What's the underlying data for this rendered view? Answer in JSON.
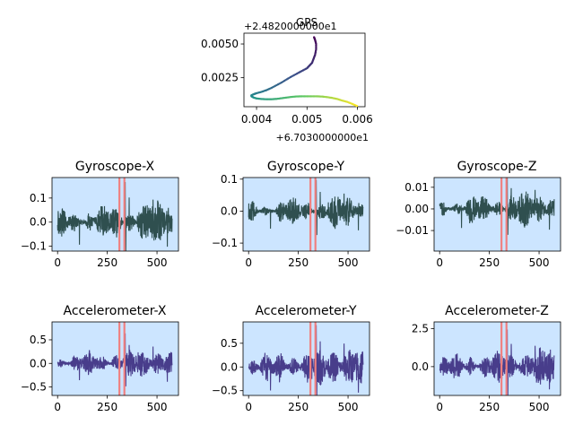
{
  "chart_data": [
    {
      "type": "scatter",
      "title": "GPS",
      "x_offset_label": "+6.7030000000e1",
      "y_offset_label": "+2.4820000000e1",
      "xlim": [
        0.00375,
        0.00615
      ],
      "ylim": [
        0.00035,
        0.0058
      ],
      "xticks": [
        0.004,
        0.005,
        0.006
      ],
      "xtick_labels": [
        "0.004",
        "0.005",
        "0.006"
      ],
      "yticks": [
        0.0025,
        0.005
      ],
      "ytick_labels": [
        "0.0025",
        "0.0050"
      ],
      "colormap": [
        "#440154",
        "#3b528b",
        "#21918c",
        "#5ec962",
        "#fde725"
      ],
      "x": [
        0.00599,
        0.0059,
        0.0058,
        0.0057,
        0.0056,
        0.0055,
        0.0054,
        0.0053,
        0.0052,
        0.0051,
        0.005,
        0.0049,
        0.0048,
        0.0047,
        0.0046,
        0.0045,
        0.0044,
        0.0043,
        0.0042,
        0.0041,
        0.004,
        0.00394,
        0.0039,
        0.0039,
        0.00395,
        0.004,
        0.0041,
        0.0042,
        0.0043,
        0.0044,
        0.0045,
        0.0046,
        0.0047,
        0.0048,
        0.0049,
        0.005,
        0.00505,
        0.0051,
        0.00513,
        0.00516,
        0.00518,
        0.00518,
        0.00516,
        0.00514
      ],
      "y": [
        0.0004,
        0.00055,
        0.0007,
        0.0008,
        0.00092,
        0.001,
        0.00106,
        0.0011,
        0.00112,
        0.00112,
        0.00112,
        0.00112,
        0.00111,
        0.00108,
        0.00103,
        0.00098,
        0.00093,
        0.0009,
        0.0009,
        0.00092,
        0.00096,
        0.00103,
        0.00112,
        0.0012,
        0.00128,
        0.00135,
        0.00145,
        0.00158,
        0.00175,
        0.00195,
        0.00215,
        0.00238,
        0.0026,
        0.0028,
        0.003,
        0.0032,
        0.0034,
        0.0036,
        0.0039,
        0.0042,
        0.0046,
        0.005,
        0.0053,
        0.0055
      ]
    },
    {
      "type": "line",
      "title": "Gyroscope-X",
      "color": "#2f4f4f",
      "background": "#cce5ff",
      "highlight_lines_x": [
        311,
        336
      ],
      "amplitude_peak": 0.17,
      "xlim": [
        -28,
        608
      ],
      "ylim": [
        -0.12,
        0.185
      ],
      "xticks": [
        0,
        250,
        500
      ],
      "yticks": [
        -0.1,
        0.0,
        0.1
      ],
      "ytick_labels": [
        "−0.1",
        "0.0",
        "0.1"
      ]
    },
    {
      "type": "line",
      "title": "Gyroscope-Y",
      "color": "#2f4f4f",
      "background": "#cce5ff",
      "highlight_lines_x": [
        311,
        336
      ],
      "amplitude_peak": 0.1,
      "xlim": [
        -28,
        608
      ],
      "ylim": [
        -0.125,
        0.105
      ],
      "xticks": [
        0,
        250,
        500
      ],
      "yticks": [
        -0.1,
        0.0,
        0.1
      ],
      "ytick_labels": [
        "−0.1",
        "0.0",
        "0.1"
      ]
    },
    {
      "type": "line",
      "title": "Gyroscope-Z",
      "color": "#2f4f4f",
      "background": "#cce5ff",
      "highlight_lines_x": [
        311,
        336
      ],
      "amplitude_peak": 0.016,
      "xlim": [
        -28,
        608
      ],
      "ylim": [
        -0.0195,
        0.0145
      ],
      "xticks": [
        0,
        250,
        500
      ],
      "yticks": [
        -0.01,
        0.0,
        0.01
      ],
      "ytick_labels": [
        "−0.01",
        "0.00",
        "0.01"
      ]
    },
    {
      "type": "line",
      "title": "Accelerometer-X",
      "color": "#483d8b",
      "background": "#cce5ff",
      "highlight_lines_x": [
        311,
        336
      ],
      "amplitude_peak": 0.65,
      "xlim": [
        -28,
        608
      ],
      "ylim": [
        -0.68,
        0.88
      ],
      "xticks": [
        0,
        250,
        500
      ],
      "yticks": [
        -0.5,
        0.0,
        0.5
      ],
      "ytick_labels": [
        "−0.5",
        "0.0",
        "0.5"
      ]
    },
    {
      "type": "line",
      "title": "Accelerometer-Y",
      "color": "#483d8b",
      "background": "#cce5ff",
      "highlight_lines_x": [
        311,
        336
      ],
      "amplitude_peak": 0.9,
      "xlim": [
        -28,
        608
      ],
      "ylim": [
        -0.6,
        0.95
      ],
      "xticks": [
        0,
        250,
        500
      ],
      "yticks": [
        -0.5,
        0.0,
        0.5
      ],
      "ytick_labels": [
        "−0.5",
        "0.0",
        "0.5"
      ]
    },
    {
      "type": "line",
      "title": "Accelerometer-Z",
      "color": "#483d8b",
      "background": "#cce5ff",
      "highlight_lines_x": [
        311,
        336
      ],
      "amplitude_peak": 2.5,
      "xlim": [
        -28,
        608
      ],
      "ylim": [
        -1.9,
        2.95
      ],
      "xticks": [
        0,
        250,
        500
      ],
      "yticks": [
        0.0,
        2.5
      ],
      "ytick_labels": [
        "0.0",
        "2.5"
      ]
    }
  ]
}
